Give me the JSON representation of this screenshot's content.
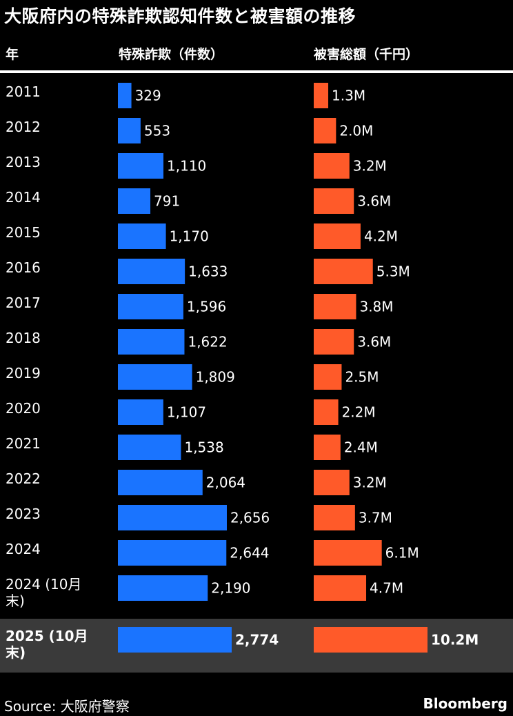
{
  "title": "大阪府内の特殊詐欺認知件数と被害額の推移",
  "headers": {
    "year": "年",
    "count": "特殊詐欺（件数）",
    "damage": "被害総額（千円）"
  },
  "source": "Source:  大阪府警察",
  "brand": "Bloomberg",
  "colors": {
    "count_bar": "#1a74ff",
    "damage_bar": "#ff5a29",
    "highlight_row": "#3a3a3a",
    "background": "#000000",
    "text": "#ffffff"
  },
  "chart_data": {
    "type": "table",
    "columns": [
      "年",
      "特殊詐欺（件数）",
      "被害総額（千円）"
    ],
    "rows": [
      {
        "year": [
          "2011"
        ],
        "count": 329,
        "count_label": "329",
        "damage": 1.3,
        "damage_label": "1.3M"
      },
      {
        "year": [
          "2012"
        ],
        "count": 553,
        "count_label": "553",
        "damage": 2.0,
        "damage_label": "2.0M"
      },
      {
        "year": [
          "2013"
        ],
        "count": 1110,
        "count_label": "1,110",
        "damage": 3.2,
        "damage_label": "3.2M"
      },
      {
        "year": [
          "2014"
        ],
        "count": 791,
        "count_label": "791",
        "damage": 3.6,
        "damage_label": "3.6M"
      },
      {
        "year": [
          "2015"
        ],
        "count": 1170,
        "count_label": "1,170",
        "damage": 4.2,
        "damage_label": "4.2M"
      },
      {
        "year": [
          "2016"
        ],
        "count": 1633,
        "count_label": "1,633",
        "damage": 5.3,
        "damage_label": "5.3M"
      },
      {
        "year": [
          "2017"
        ],
        "count": 1596,
        "count_label": "1,596",
        "damage": 3.8,
        "damage_label": "3.8M"
      },
      {
        "year": [
          "2018"
        ],
        "count": 1622,
        "count_label": "1,622",
        "damage": 3.6,
        "damage_label": "3.6M"
      },
      {
        "year": [
          "2019"
        ],
        "count": 1809,
        "count_label": "1,809",
        "damage": 2.5,
        "damage_label": "2.5M"
      },
      {
        "year": [
          "2020"
        ],
        "count": 1107,
        "count_label": "1,107",
        "damage": 2.2,
        "damage_label": "2.2M"
      },
      {
        "year": [
          "2021"
        ],
        "count": 1538,
        "count_label": "1,538",
        "damage": 2.4,
        "damage_label": "2.4M"
      },
      {
        "year": [
          "2022"
        ],
        "count": 2064,
        "count_label": "2,064",
        "damage": 3.2,
        "damage_label": "3.2M"
      },
      {
        "year": [
          "2023"
        ],
        "count": 2656,
        "count_label": "2,656",
        "damage": 3.7,
        "damage_label": "3.7M"
      },
      {
        "year": [
          "2024"
        ],
        "count": 2644,
        "count_label": "2,644",
        "damage": 6.1,
        "damage_label": "6.1M"
      },
      {
        "year": [
          "2024 (10月",
          "末)"
        ],
        "count": 2190,
        "count_label": "2,190",
        "damage": 4.7,
        "damage_label": "4.7M"
      },
      {
        "year": [
          "2025 (10月",
          "末)"
        ],
        "count": 2774,
        "count_label": "2,774",
        "damage": 10.2,
        "damage_label": "10.2M",
        "highlight": true
      }
    ],
    "grid": false,
    "legend": "none"
  }
}
